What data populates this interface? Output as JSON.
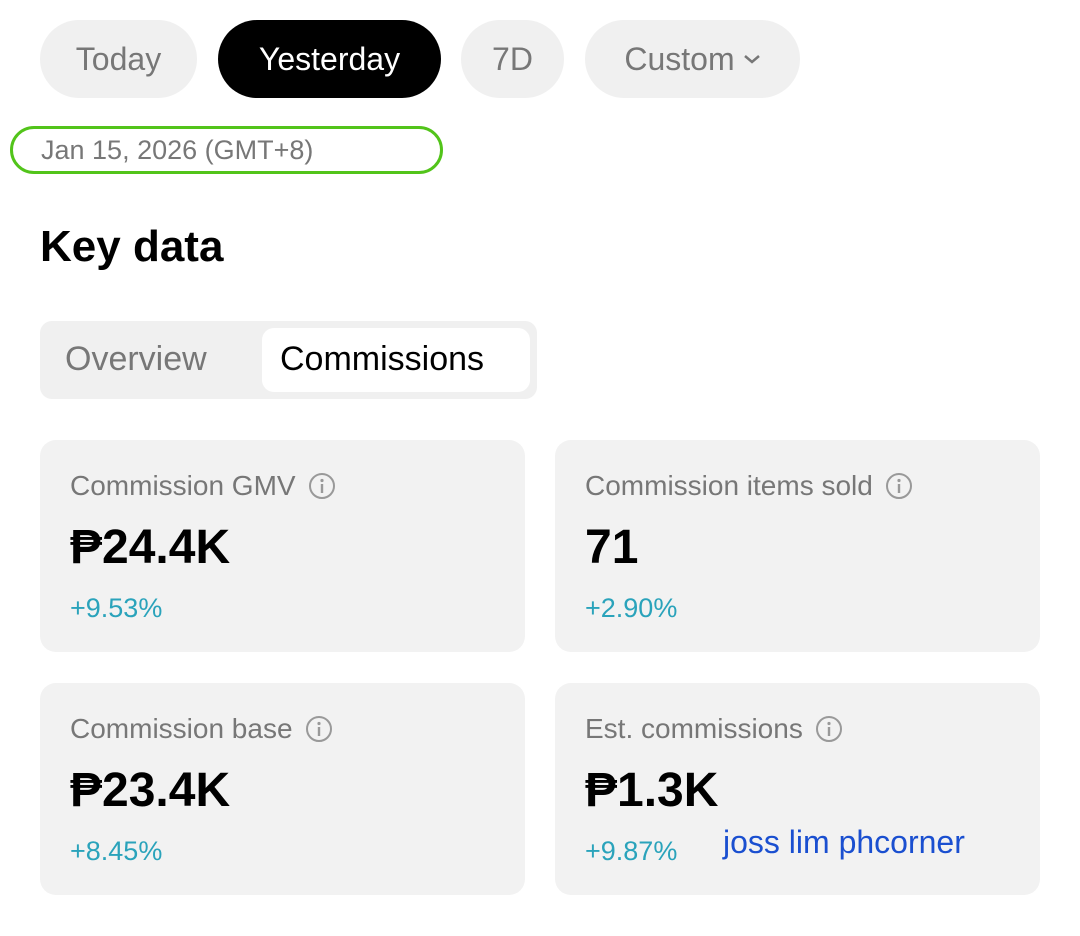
{
  "date_tabs": [
    "Today",
    "Yesterday",
    "7D",
    "Custom"
  ],
  "date_label": "Jan 15, 2026 (GMT+8)",
  "section_title": "Key data",
  "view_tabs": [
    "Overview",
    "Commissions"
  ],
  "cards": [
    {
      "label": "Commission GMV",
      "value": "₱24.4K",
      "change": "+9.53%"
    },
    {
      "label": "Commission items sold",
      "value": "71",
      "change": "+2.90%"
    },
    {
      "label": "Commission base",
      "value": "₱23.4K",
      "change": "+8.45%"
    },
    {
      "label": "Est. commissions",
      "value": "₱1.3K",
      "change": "+9.87%"
    }
  ],
  "watermark": "joss lim phcorner"
}
